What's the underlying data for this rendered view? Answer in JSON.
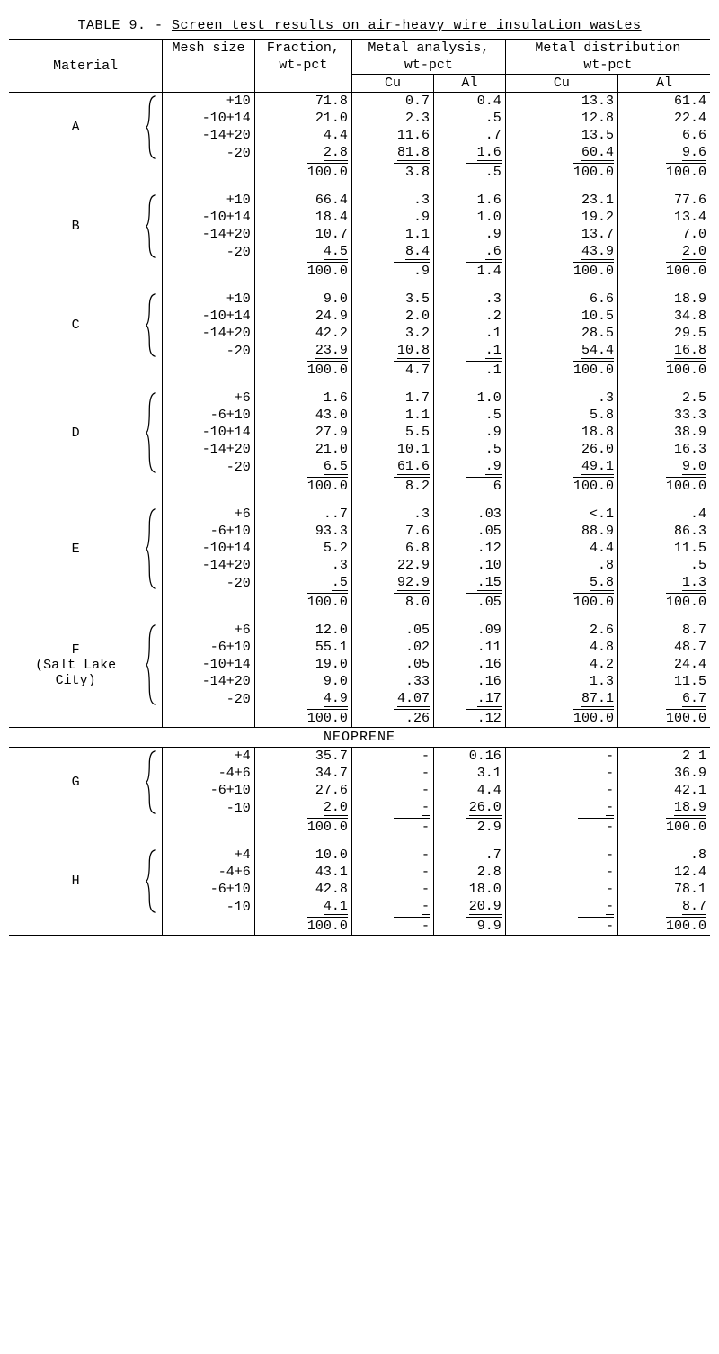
{
  "title_prefix": "TABLE 9. - ",
  "title_main": "Screen test results on air-heavy wire insulation wastes",
  "headers": {
    "material": "Material",
    "mesh": "Mesh size",
    "fraction": "Fraction,",
    "fraction_unit": "wt-pct",
    "analysis": "Metal analysis,",
    "analysis_unit": "wt-pct",
    "distribution": "Metal distribution",
    "distribution_unit": "wt-pct",
    "cu": "Cu",
    "al": "Al"
  },
  "section_label": "NEOPRENE",
  "materials": [
    {
      "name": "A",
      "rows": [
        {
          "mesh": "+10",
          "frac": "71.8",
          "acu": "0.7",
          "aal": "0.4",
          "dcu": "13.3",
          "dal": "61.4"
        },
        {
          "mesh": "-10+14",
          "frac": "21.0",
          "acu": "2.3",
          "aal": ".5",
          "dcu": "12.8",
          "dal": "22.4"
        },
        {
          "mesh": "-14+20",
          "frac": "4.4",
          "acu": "11.6",
          "aal": ".7",
          "dcu": "13.5",
          "dal": "6.6"
        },
        {
          "mesh": "-20",
          "frac": "2.8",
          "acu": "81.8",
          "aal": "1.6",
          "dcu": "60.4",
          "dal": "9.6"
        }
      ],
      "total": {
        "frac": "100.0",
        "acu": "3.8",
        "aal": ".5",
        "dcu": "100.0",
        "dal": "100.0"
      }
    },
    {
      "name": "B",
      "rows": [
        {
          "mesh": "+10",
          "frac": "66.4",
          "acu": ".3",
          "aal": "1.6",
          "dcu": "23.1",
          "dal": "77.6"
        },
        {
          "mesh": "-10+14",
          "frac": "18.4",
          "acu": ".9",
          "aal": "1.0",
          "dcu": "19.2",
          "dal": "13.4"
        },
        {
          "mesh": "-14+20",
          "frac": "10.7",
          "acu": "1.1",
          "aal": ".9",
          "dcu": "13.7",
          "dal": "7.0"
        },
        {
          "mesh": "-20",
          "frac": "4.5",
          "acu": "8.4",
          "aal": ".6",
          "dcu": "43.9",
          "dal": "2.0"
        }
      ],
      "total": {
        "frac": "100.0",
        "acu": ".9",
        "aal": "1.4",
        "dcu": "100.0",
        "dal": "100.0"
      }
    },
    {
      "name": "C",
      "rows": [
        {
          "mesh": "+10",
          "frac": "9.0",
          "acu": "3.5",
          "aal": ".3",
          "dcu": "6.6",
          "dal": "18.9"
        },
        {
          "mesh": "-10+14",
          "frac": "24.9",
          "acu": "2.0",
          "aal": ".2",
          "dcu": "10.5",
          "dal": "34.8"
        },
        {
          "mesh": "-14+20",
          "frac": "42.2",
          "acu": "3.2",
          "aal": ".1",
          "dcu": "28.5",
          "dal": "29.5"
        },
        {
          "mesh": "-20",
          "frac": "23.9",
          "acu": "10.8",
          "aal": ".1",
          "dcu": "54.4",
          "dal": "16.8"
        }
      ],
      "total": {
        "frac": "100.0",
        "acu": "4.7",
        "aal": ".1",
        "dcu": "100.0",
        "dal": "100.0"
      }
    },
    {
      "name": "D",
      "rows": [
        {
          "mesh": "+6",
          "frac": "1.6",
          "acu": "1.7",
          "aal": "1.0",
          "dcu": ".3",
          "dal": "2.5"
        },
        {
          "mesh": "-6+10",
          "frac": "43.0",
          "acu": "1.1",
          "aal": ".5",
          "dcu": "5.8",
          "dal": "33.3"
        },
        {
          "mesh": "-10+14",
          "frac": "27.9",
          "acu": "5.5",
          "aal": ".9",
          "dcu": "18.8",
          "dal": "38.9"
        },
        {
          "mesh": "-14+20",
          "frac": "21.0",
          "acu": "10.1",
          "aal": ".5",
          "dcu": "26.0",
          "dal": "16.3"
        },
        {
          "mesh": "-20",
          "frac": "6.5",
          "acu": "61.6",
          "aal": ".9",
          "dcu": "49.1",
          "dal": "9.0"
        }
      ],
      "total": {
        "frac": "100.0",
        "acu": "8.2",
        "aal": "6",
        "dcu": "100.0",
        "dal": "100.0"
      }
    },
    {
      "name": "E",
      "rows": [
        {
          "mesh": "+6",
          "frac": "..7",
          "acu": ".3",
          "aal": ".03",
          "dcu": "<.1",
          "dal": ".4"
        },
        {
          "mesh": "-6+10",
          "frac": "93.3",
          "acu": "7.6",
          "aal": ".05",
          "dcu": "88.9",
          "dal": "86.3"
        },
        {
          "mesh": "-10+14",
          "frac": "5.2",
          "acu": "6.8",
          "aal": ".12",
          "dcu": "4.4",
          "dal": "11.5"
        },
        {
          "mesh": "-14+20",
          "frac": ".3",
          "acu": "22.9",
          "aal": ".10",
          "dcu": ".8",
          "dal": ".5"
        },
        {
          "mesh": "-20",
          "frac": ".5",
          "acu": "92.9",
          "aal": ".15",
          "dcu": "5.8",
          "dal": "1.3"
        }
      ],
      "total": {
        "frac": "100.0",
        "acu": "8.0",
        "aal": ".05",
        "dcu": "100.0",
        "dal": "100.0"
      }
    },
    {
      "name": "F",
      "subname": "(Salt Lake City)",
      "rows": [
        {
          "mesh": "+6",
          "frac": "12.0",
          "acu": ".05",
          "aal": ".09",
          "dcu": "2.6",
          "dal": "8.7"
        },
        {
          "mesh": "-6+10",
          "frac": "55.1",
          "acu": ".02",
          "aal": ".11",
          "dcu": "4.8",
          "dal": "48.7"
        },
        {
          "mesh": "-10+14",
          "frac": "19.0",
          "acu": ".05",
          "aal": ".16",
          "dcu": "4.2",
          "dal": "24.4"
        },
        {
          "mesh": "-14+20",
          "frac": "9.0",
          "acu": ".33",
          "aal": ".16",
          "dcu": "1.3",
          "dal": "11.5"
        },
        {
          "mesh": "-20",
          "frac": "4.9",
          "acu": "4.07",
          "aal": ".17",
          "dcu": "87.1",
          "dal": "6.7"
        }
      ],
      "total": {
        "frac": "100.0",
        "acu": ".26",
        "aal": ".12",
        "dcu": "100.0",
        "dal": "100.0"
      }
    }
  ],
  "neoprene_materials": [
    {
      "name": "G",
      "rows": [
        {
          "mesh": "+4",
          "frac": "35.7",
          "acu": "-",
          "aal": "0.16",
          "dcu": "-",
          "dal": "2 1"
        },
        {
          "mesh": "-4+6",
          "frac": "34.7",
          "acu": "-",
          "aal": "3.1",
          "dcu": "-",
          "dal": "36.9"
        },
        {
          "mesh": "-6+10",
          "frac": "27.6",
          "acu": "-",
          "aal": "4.4",
          "dcu": "-",
          "dal": "42.1"
        },
        {
          "mesh": "-10",
          "frac": "2.0",
          "acu": "-",
          "aal": "26.0",
          "dcu": "-",
          "dal": "18.9"
        }
      ],
      "total": {
        "frac": "100.0",
        "acu": "-",
        "aal": "2.9",
        "dcu": "-",
        "dal": "100.0"
      }
    },
    {
      "name": "H",
      "rows": [
        {
          "mesh": "+4",
          "frac": "10.0",
          "acu": "-",
          "aal": ".7",
          "dcu": "-",
          "dal": ".8"
        },
        {
          "mesh": "-4+6",
          "frac": "43.1",
          "acu": "-",
          "aal": "2.8",
          "dcu": "-",
          "dal": "12.4"
        },
        {
          "mesh": "-6+10",
          "frac": "42.8",
          "acu": "-",
          "aal": "18.0",
          "dcu": "-",
          "dal": "78.1"
        },
        {
          "mesh": "-10",
          "frac": "4.1",
          "acu": "-",
          "aal": "20.9",
          "dcu": "-",
          "dal": "8.7"
        }
      ],
      "total": {
        "frac": "100.0",
        "acu": "-",
        "aal": "9.9",
        "dcu": "-",
        "dal": "100.0"
      }
    }
  ],
  "style": {
    "background_color": "#ffffff",
    "text_color": "#000000",
    "font_family": "Courier New",
    "base_fontsize_pt": 12,
    "rule_color": "#000000"
  }
}
